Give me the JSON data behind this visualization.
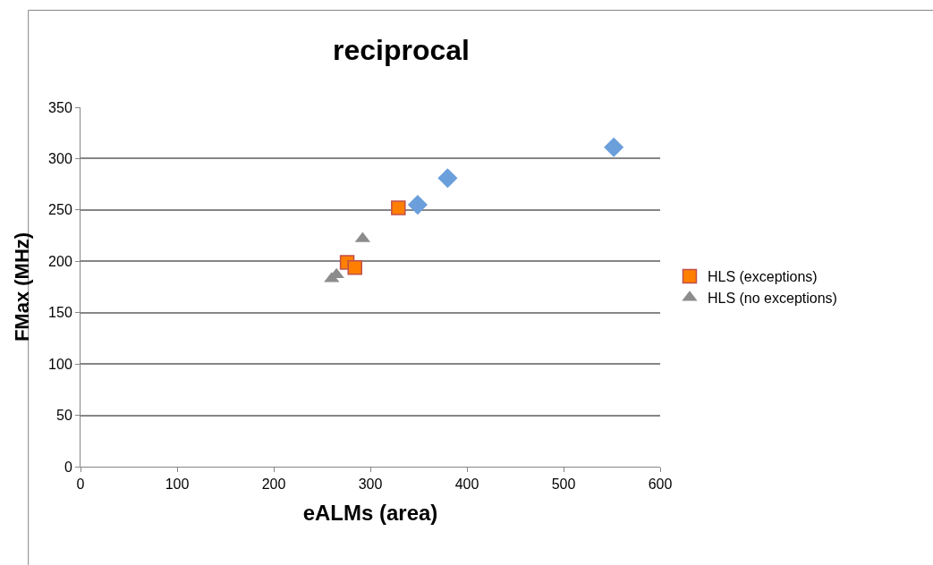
{
  "chart_data": {
    "type": "scatter",
    "title": "reciprocal",
    "xlabel": "eALMs (area)",
    "ylabel": "FMax (MHz)",
    "xlim": [
      0,
      600
    ],
    "xticks": [
      0,
      100,
      200,
      300,
      400,
      500,
      600
    ],
    "ylim": [
      0,
      350
    ],
    "yticks": [
      0,
      50,
      100,
      150,
      200,
      250,
      300,
      350
    ],
    "grid": "y",
    "legend": "right",
    "series": [
      {
        "color": "#6a9fdb",
        "marker": "diamond",
        "x": [
          552,
          380,
          349
        ],
        "values": [
          311,
          281,
          255
        ]
      },
      {
        "name": "HLS (exceptions)",
        "color": "#ff7f00",
        "marker": "square",
        "x": [
          329,
          276,
          284
        ],
        "values": [
          252,
          199,
          194
        ]
      },
      {
        "name": "HLS (no exceptions)",
        "color": "#8c8c8c",
        "marker": "triangle",
        "x": [
          292,
          260,
          265
        ],
        "values": [
          222,
          183,
          187
        ]
      }
    ]
  }
}
